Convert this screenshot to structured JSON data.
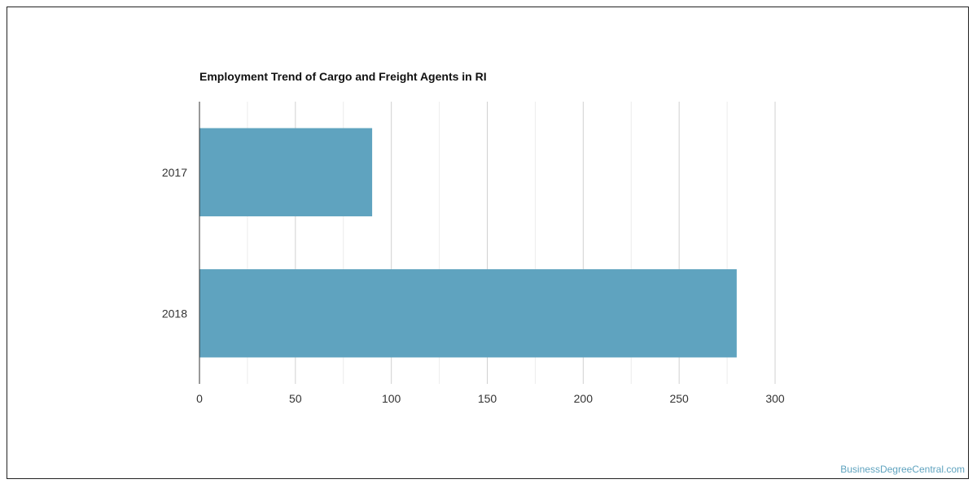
{
  "chart_data": {
    "type": "bar",
    "orientation": "horizontal",
    "title": "Employment Trend of Cargo and Freight Agents in RI",
    "categories": [
      "2017",
      "2018"
    ],
    "values": [
      90,
      280
    ],
    "xlim": [
      0,
      300
    ],
    "xticks": [
      0,
      50,
      100,
      150,
      200,
      250,
      300
    ],
    "xlabel": "",
    "ylabel": "",
    "grid": true,
    "bar_color": "#5fa3bf"
  },
  "watermark": "BusinessDegreeCentral.com"
}
